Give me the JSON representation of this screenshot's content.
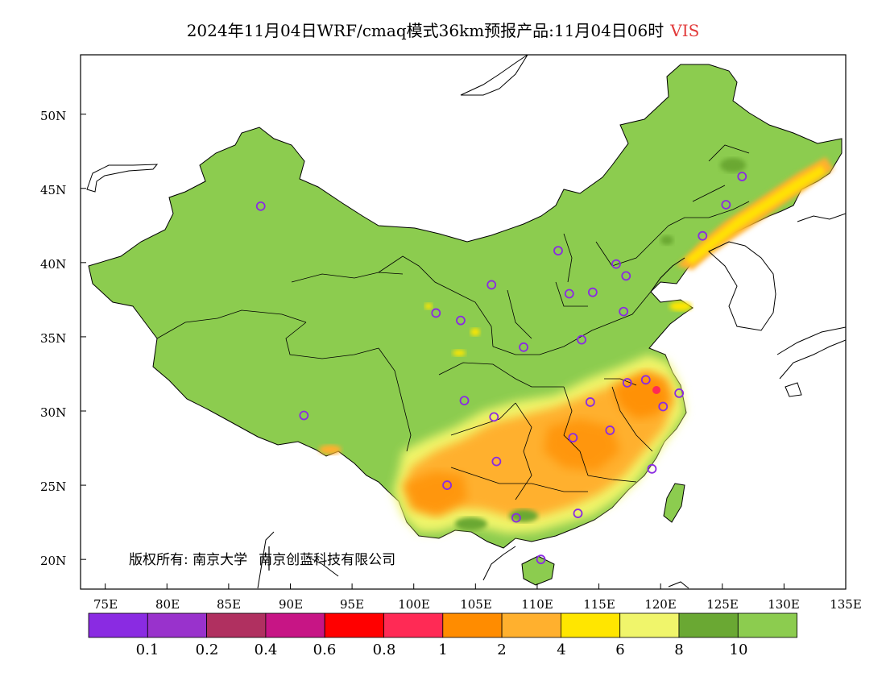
{
  "header": {
    "title": "2024年11月04日WRF/cmaq模式36km预报产品:11月04日06时",
    "variable": "VIS"
  },
  "map": {
    "type": "heatmap",
    "lat_labels": [
      "50N",
      "45N",
      "40N",
      "35N",
      "30N",
      "25N",
      "20N"
    ],
    "lon_labels": [
      "75E",
      "80E",
      "85E",
      "90E",
      "95E",
      "100E",
      "105E",
      "110E",
      "115E",
      "120E",
      "125E",
      "130E",
      "135E"
    ],
    "lat_range": [
      18,
      54
    ],
    "lon_range": [
      73,
      135
    ],
    "colorbar": {
      "colors": [
        "#8a2be2",
        "#9932cc",
        "#b03060",
        "#c71585",
        "#ff0000",
        "#ff2a55",
        "#ff8c00",
        "#ffb02e",
        "#ffe600",
        "#f0f56b",
        "#6aa833",
        "#8ccc4f"
      ],
      "labels": [
        "0.1",
        "0.2",
        "0.4",
        "0.6",
        "0.8",
        "1",
        "2",
        "4",
        "6",
        "8",
        "10"
      ]
    },
    "stations": [
      [
        87.6,
        43.8
      ],
      [
        91.1,
        29.7
      ],
      [
        101.8,
        36.6
      ],
      [
        103.8,
        36.1
      ],
      [
        106.3,
        38.5
      ],
      [
        111.7,
        40.8
      ],
      [
        112.6,
        37.9
      ],
      [
        114.5,
        38.0
      ],
      [
        116.4,
        39.9
      ],
      [
        117.2,
        39.1
      ],
      [
        117.0,
        36.7
      ],
      [
        113.6,
        34.8
      ],
      [
        108.9,
        34.3
      ],
      [
        104.1,
        30.7
      ],
      [
        106.5,
        29.6
      ],
      [
        106.7,
        26.6
      ],
      [
        102.7,
        25.0
      ],
      [
        108.3,
        22.8
      ],
      [
        110.3,
        20.0
      ],
      [
        113.3,
        23.1
      ],
      [
        119.3,
        26.1
      ],
      [
        112.9,
        28.2
      ],
      [
        115.9,
        28.7
      ],
      [
        114.3,
        30.6
      ],
      [
        117.3,
        31.9
      ],
      [
        118.8,
        32.1
      ],
      [
        120.2,
        30.3
      ],
      [
        121.5,
        31.2
      ],
      [
        123.4,
        41.8
      ],
      [
        125.3,
        43.9
      ],
      [
        126.6,
        45.8
      ]
    ]
  },
  "copyright": {
    "label": "版权所有:",
    "owner1": "南京大学",
    "owner2": "南京创蓝科技有限公司"
  }
}
